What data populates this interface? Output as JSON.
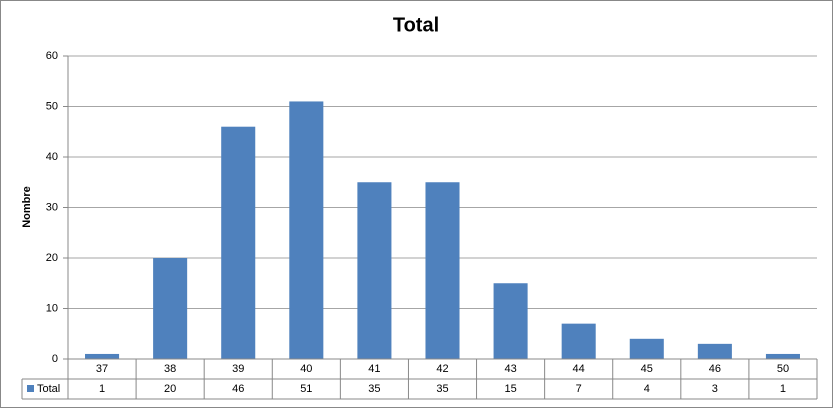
{
  "chart_data": {
    "type": "bar",
    "title": "Total",
    "y_label": "Nombre",
    "categories": [
      "37",
      "38",
      "39",
      "40",
      "41",
      "42",
      "43",
      "44",
      "45",
      "46",
      "50"
    ],
    "series": [
      {
        "name": "Total",
        "color": "#4f81bd",
        "values": [
          1,
          20,
          46,
          51,
          35,
          35,
          15,
          7,
          4,
          3,
          1
        ]
      }
    ],
    "ylim": [
      0,
      60
    ],
    "yticks": [
      0,
      10,
      20,
      30,
      40,
      50,
      60
    ],
    "grid": true,
    "data_table": true
  }
}
